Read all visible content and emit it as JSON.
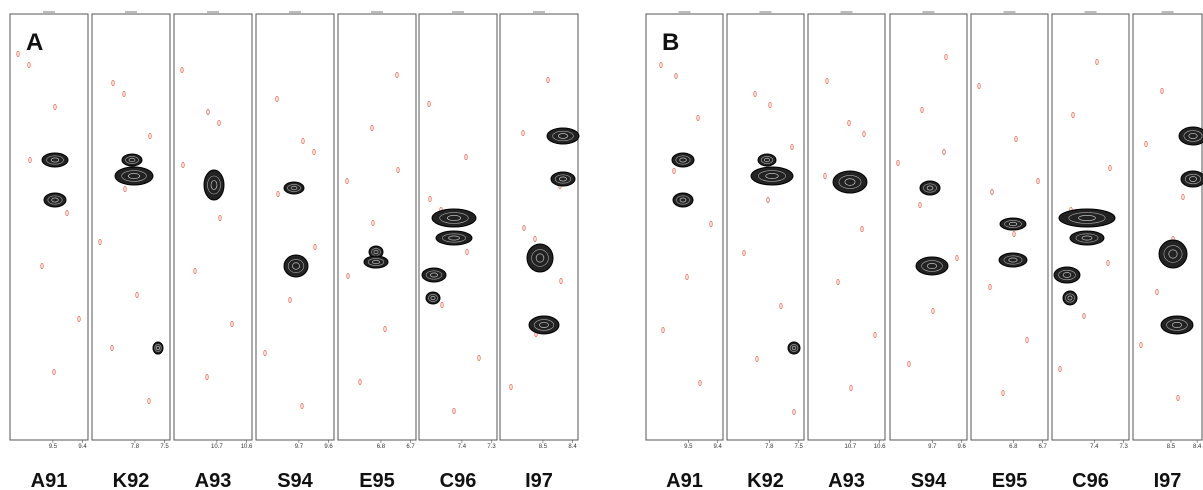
{
  "panels": [
    {
      "label": "A",
      "strips": [
        {
          "label": "A91",
          "ticks": [
            9.5,
            9.4
          ]
        },
        {
          "label": "K92",
          "ticks": [
            7.8,
            7.5
          ]
        },
        {
          "label": "A93",
          "ticks": [
            10.7,
            10.6
          ]
        },
        {
          "label": "S94",
          "ticks": [
            9.7,
            9.6
          ]
        },
        {
          "label": "E95",
          "ticks": [
            6.8,
            6.7
          ]
        },
        {
          "label": "C96",
          "ticks": [
            7.4,
            7.3
          ]
        },
        {
          "label": "I97",
          "ticks": [
            8.5,
            8.4
          ]
        }
      ]
    },
    {
      "label": "B",
      "strips": [
        {
          "label": "A91",
          "ticks": [
            9.5,
            9.4
          ]
        },
        {
          "label": "K92",
          "ticks": [
            7.8,
            7.5
          ]
        },
        {
          "label": "A93",
          "ticks": [
            10.7,
            10.6
          ]
        },
        {
          "label": "S94",
          "ticks": [
            9.7,
            9.6
          ]
        },
        {
          "label": "E95",
          "ticks": [
            6.8,
            6.7
          ]
        },
        {
          "label": "C96",
          "ticks": [
            7.4,
            7.3
          ]
        },
        {
          "label": "I97",
          "ticks": [
            8.5,
            8.4
          ]
        }
      ]
    }
  ]
}
